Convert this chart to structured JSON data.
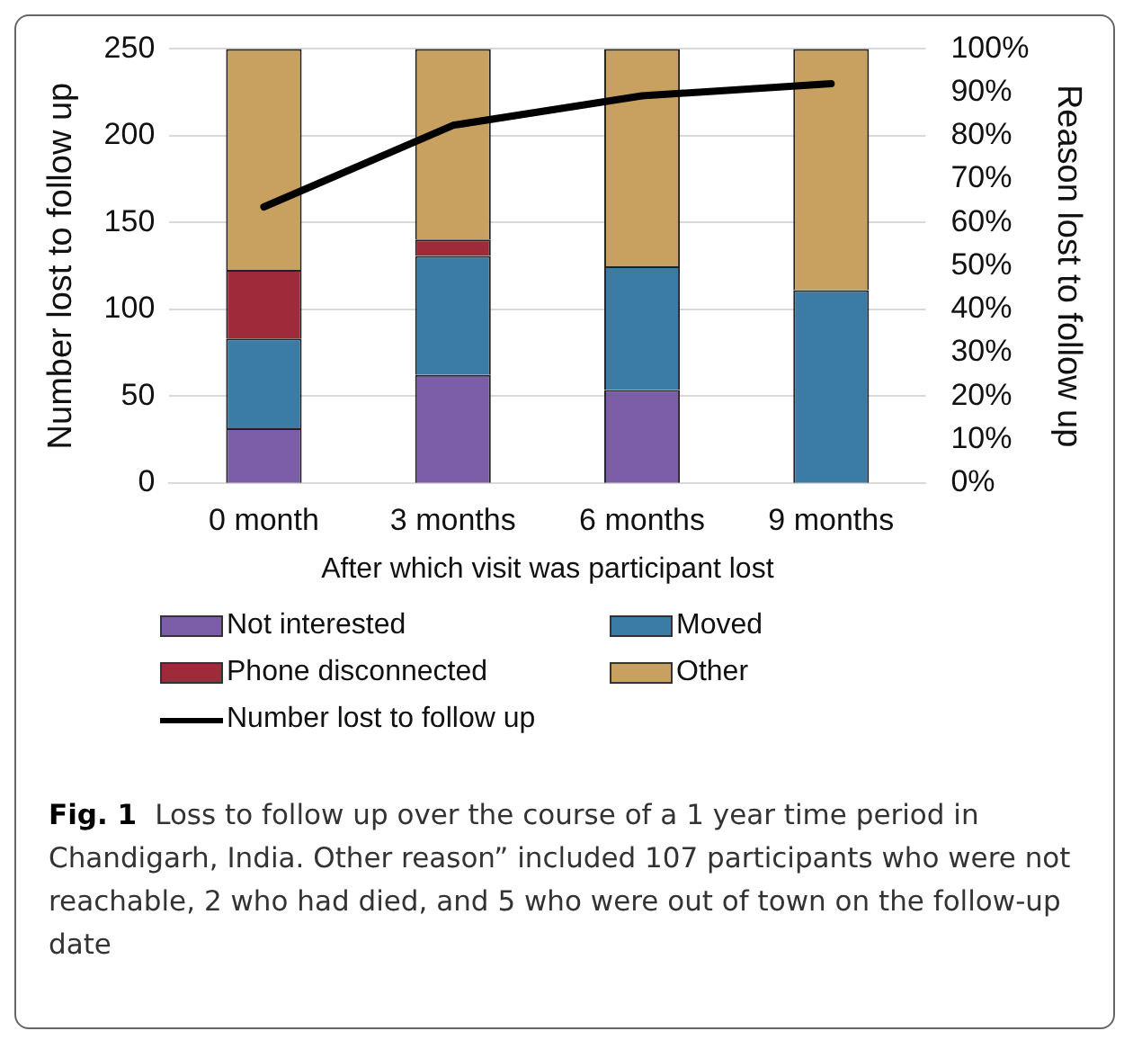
{
  "chart_data": {
    "type": "bar",
    "stacked": true,
    "xlabel": "After which visit was participant lost",
    "ylabel": "Number lost to follow up",
    "y2label": "Reason lost to follow up",
    "categories": [
      "0 month",
      "3 months",
      "6 months",
      "9 months"
    ],
    "series": [
      {
        "name": "Not interested",
        "color": "#7b5ea7",
        "axis": "y2",
        "values": [
          12.6,
          24.9,
          21.4,
          0
        ]
      },
      {
        "name": "Moved",
        "color": "#3a7ca5",
        "axis": "y2",
        "values": [
          20.7,
          27.4,
          28.5,
          44.4
        ]
      },
      {
        "name": "Phone disconnected",
        "color": "#9e2a3a",
        "axis": "y2",
        "values": [
          15.8,
          3.8,
          0,
          0
        ]
      },
      {
        "name": "Other",
        "color": "#c8a060",
        "axis": "y2",
        "values": [
          50.9,
          43.9,
          50.1,
          55.6
        ]
      },
      {
        "name": "Number lost to follow up",
        "type": "line",
        "color": "#000000",
        "axis": "y",
        "values": [
          159,
          206,
          223,
          230
        ]
      }
    ],
    "ylim": [
      0,
      250
    ],
    "yticks": [
      0,
      50,
      100,
      150,
      200,
      250
    ],
    "y2lim": [
      0,
      100
    ],
    "y2ticks": [
      {
        "value": 0,
        "label": "0%"
      },
      {
        "value": 10,
        "label": "10%"
      },
      {
        "value": 20,
        "label": "20%"
      },
      {
        "value": 30,
        "label": "30%"
      },
      {
        "value": 40,
        "label": "40%"
      },
      {
        "value": 50,
        "label": "50%"
      },
      {
        "value": 60,
        "label": "60%"
      },
      {
        "value": 70,
        "label": "70%"
      },
      {
        "value": 80,
        "label": "80%"
      },
      {
        "value": 90,
        "label": "90%"
      },
      {
        "value": 100,
        "label": "100%"
      }
    ],
    "grid": "y",
    "legend": "bottom",
    "marker": "none",
    "line_style": "solid",
    "annotations": [
      "Fig. 1",
      "Loss to follow up over the course of a 1 year time period in Chandigarh, India. Other reason” included 107 participants who were not reachable, 2 who had died, and 5 who were out of town on the follow-up date"
    ]
  }
}
